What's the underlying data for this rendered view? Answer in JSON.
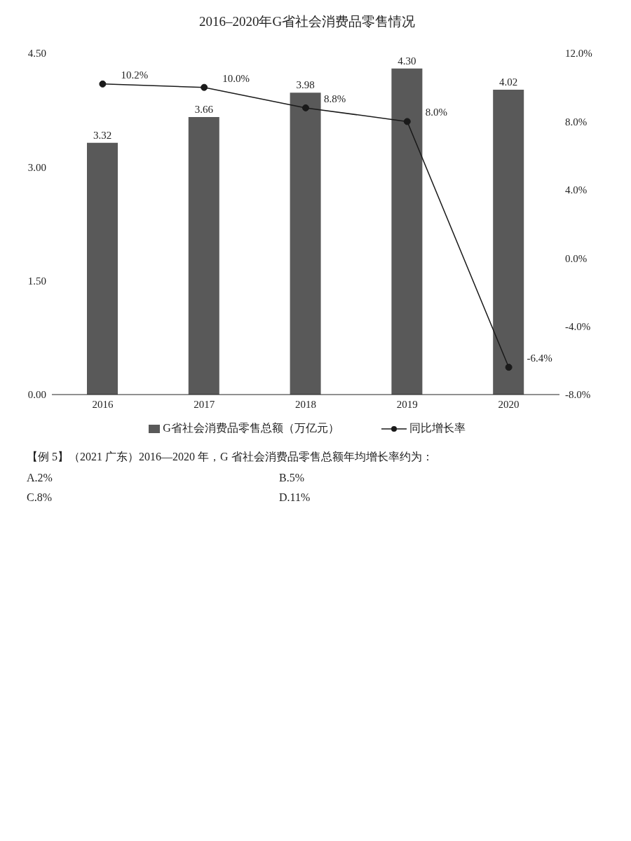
{
  "chart_data": {
    "type": "bar",
    "title": "2016–2020年G省社会消费品零售情况",
    "categories": [
      "2016",
      "2017",
      "2018",
      "2019",
      "2020"
    ],
    "series": [
      {
        "name": "G省社会消费品零售总额（万亿元）",
        "color": "#595959",
        "values": [
          3.32,
          3.66,
          3.98,
          4.3,
          4.02
        ],
        "value_labels": [
          "3.32",
          "3.66",
          "3.98",
          "4.30",
          "4.02"
        ]
      },
      {
        "name": "同比增长率",
        "type": "line",
        "axis": "y2",
        "color": "#1a1a1a",
        "values": [
          10.2,
          10.0,
          8.8,
          8.0,
          -6.4
        ],
        "value_labels": [
          "10.2%",
          "10.0%",
          "8.8%",
          "8.0%",
          "-6.4%"
        ]
      }
    ],
    "ylim": [
      0,
      4.5
    ],
    "yticks": [
      {
        "value": 0,
        "label": "0.00"
      },
      {
        "value": 1.5,
        "label": "1.50"
      },
      {
        "value": 3,
        "label": "3.00"
      },
      {
        "value": 4.5,
        "label": "4.50"
      }
    ],
    "y2lim": [
      -8,
      12
    ],
    "y2ticks": [
      {
        "value": -8,
        "label": "-8.0%"
      },
      {
        "value": -4,
        "label": "-4.0%"
      },
      {
        "value": 0,
        "label": "0.0%"
      },
      {
        "value": 4,
        "label": "4.0%"
      },
      {
        "value": 8,
        "label": "8.0%"
      },
      {
        "value": 12,
        "label": "12.0%"
      }
    ],
    "marker": "circle",
    "legend": "bottom",
    "annotations": [
      "【例 5】（2021 广东）2016—2020 年，G 省社会消费品零售总额年均增长率约为：",
      "A.2%",
      "B.5%",
      "C.8%",
      "D.11%"
    ]
  }
}
